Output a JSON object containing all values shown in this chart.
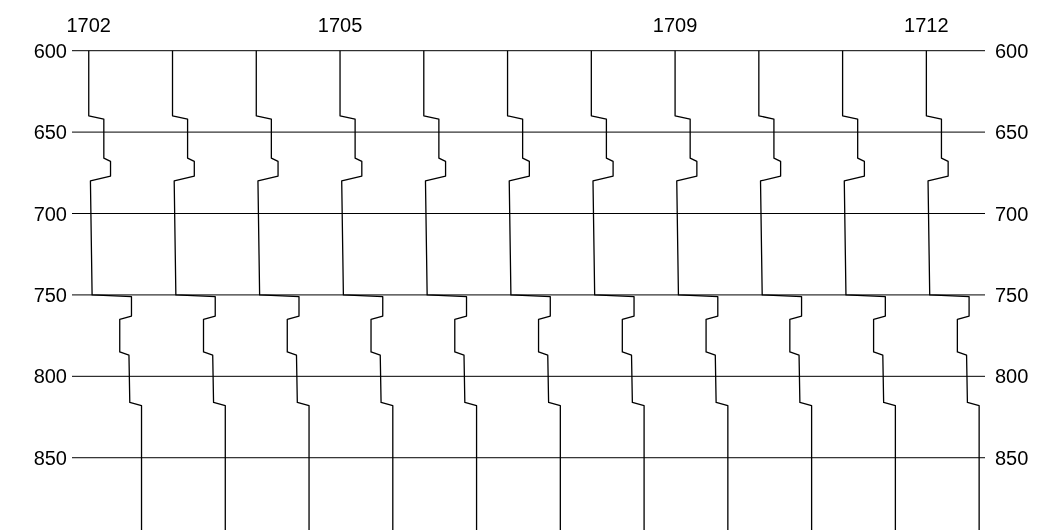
{
  "chart_data": {
    "type": "line",
    "xlim": [
      1701.8,
      1712.7
    ],
    "xticks": [
      1702,
      1705,
      1709,
      1712
    ],
    "ylim": [
      895,
      600
    ],
    "yticks": [
      600,
      650,
      700,
      750,
      800,
      850
    ],
    "y2lim": [
      895,
      600
    ],
    "y2ticks": [
      600,
      650,
      700,
      750,
      800,
      850
    ],
    "grid": "y",
    "series": [
      {
        "color": "#000000",
        "x": [
          1702,
          1702,
          1702.18,
          1702.18,
          1702.26,
          1702.26,
          1702.02,
          1702.04,
          1702.51,
          1702.51,
          1702.37,
          1702.37,
          1702.48,
          1702.49,
          1702.63,
          1702.63
        ],
        "values": [
          600,
          640,
          642,
          666,
          668,
          677,
          680,
          750,
          751,
          763,
          765,
          785,
          787,
          816,
          818,
          895
        ]
      },
      {
        "color": "#000000",
        "x": [
          1703,
          1703,
          1703.18,
          1703.18,
          1703.26,
          1703.26,
          1703.02,
          1703.04,
          1703.51,
          1703.51,
          1703.37,
          1703.37,
          1703.48,
          1703.49,
          1703.63,
          1703.63
        ],
        "values": [
          600,
          640,
          642,
          666,
          668,
          677,
          680,
          750,
          751,
          763,
          765,
          785,
          787,
          816,
          818,
          895
        ]
      },
      {
        "color": "#000000",
        "x": [
          1704,
          1704,
          1704.18,
          1704.18,
          1704.26,
          1704.26,
          1704.02,
          1704.04,
          1704.51,
          1704.51,
          1704.37,
          1704.37,
          1704.48,
          1704.49,
          1704.63,
          1704.63
        ],
        "values": [
          600,
          640,
          642,
          666,
          668,
          677,
          680,
          750,
          751,
          763,
          765,
          785,
          787,
          816,
          818,
          895
        ]
      },
      {
        "color": "#000000",
        "x": [
          1705,
          1705,
          1705.18,
          1705.18,
          1705.26,
          1705.26,
          1705.02,
          1705.04,
          1705.51,
          1705.51,
          1705.37,
          1705.37,
          1705.48,
          1705.49,
          1705.63,
          1705.63
        ],
        "values": [
          600,
          640,
          642,
          666,
          668,
          677,
          680,
          750,
          751,
          763,
          765,
          785,
          787,
          816,
          818,
          895
        ]
      },
      {
        "color": "#000000",
        "x": [
          1706,
          1706,
          1706.18,
          1706.18,
          1706.26,
          1706.26,
          1706.02,
          1706.04,
          1706.51,
          1706.51,
          1706.37,
          1706.37,
          1706.48,
          1706.49,
          1706.63,
          1706.63
        ],
        "values": [
          600,
          640,
          642,
          666,
          668,
          677,
          680,
          750,
          751,
          763,
          765,
          785,
          787,
          816,
          818,
          895
        ]
      },
      {
        "color": "#000000",
        "x": [
          1707,
          1707,
          1707.18,
          1707.18,
          1707.26,
          1707.26,
          1707.02,
          1707.04,
          1707.51,
          1707.51,
          1707.37,
          1707.37,
          1707.48,
          1707.49,
          1707.63,
          1707.63
        ],
        "values": [
          600,
          640,
          642,
          666,
          668,
          677,
          680,
          750,
          751,
          763,
          765,
          785,
          787,
          816,
          818,
          895
        ]
      },
      {
        "color": "#000000",
        "x": [
          1708,
          1708,
          1708.18,
          1708.18,
          1708.26,
          1708.26,
          1708.02,
          1708.04,
          1708.51,
          1708.51,
          1708.37,
          1708.37,
          1708.48,
          1708.49,
          1708.63,
          1708.63
        ],
        "values": [
          600,
          640,
          642,
          666,
          668,
          677,
          680,
          750,
          751,
          763,
          765,
          785,
          787,
          816,
          818,
          895
        ]
      },
      {
        "color": "#000000",
        "x": [
          1709,
          1709,
          1709.18,
          1709.18,
          1709.26,
          1709.26,
          1709.02,
          1709.04,
          1709.51,
          1709.51,
          1709.37,
          1709.37,
          1709.48,
          1709.49,
          1709.63,
          1709.63
        ],
        "values": [
          600,
          640,
          642,
          666,
          668,
          677,
          680,
          750,
          751,
          763,
          765,
          785,
          787,
          816,
          818,
          895
        ]
      },
      {
        "color": "#000000",
        "x": [
          1710,
          1710,
          1710.18,
          1710.18,
          1710.26,
          1710.26,
          1710.02,
          1710.04,
          1710.51,
          1710.51,
          1710.37,
          1710.37,
          1710.48,
          1710.49,
          1710.63,
          1710.63
        ],
        "values": [
          600,
          640,
          642,
          666,
          668,
          677,
          680,
          750,
          751,
          763,
          765,
          785,
          787,
          816,
          818,
          895
        ]
      },
      {
        "color": "#000000",
        "x": [
          1711,
          1711,
          1711.18,
          1711.18,
          1711.26,
          1711.26,
          1711.02,
          1711.04,
          1711.51,
          1711.51,
          1711.37,
          1711.37,
          1711.48,
          1711.49,
          1711.63,
          1711.63
        ],
        "values": [
          600,
          640,
          642,
          666,
          668,
          677,
          680,
          750,
          751,
          763,
          765,
          785,
          787,
          816,
          818,
          895
        ]
      },
      {
        "color": "#000000",
        "x": [
          1712,
          1712,
          1712.18,
          1712.18,
          1712.26,
          1712.26,
          1712.02,
          1712.04,
          1712.51,
          1712.51,
          1712.37,
          1712.37,
          1712.48,
          1712.49,
          1712.63,
          1712.63
        ],
        "values": [
          600,
          640,
          642,
          666,
          668,
          677,
          680,
          750,
          751,
          763,
          765,
          785,
          787,
          816,
          818,
          895
        ]
      }
    ]
  }
}
